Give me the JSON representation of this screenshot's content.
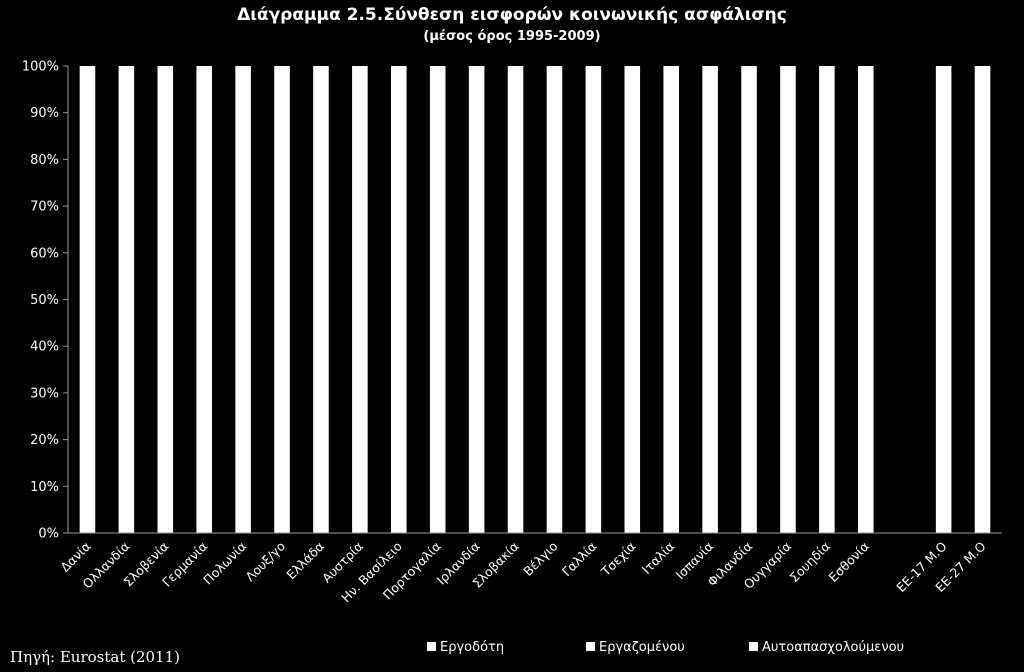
{
  "chart_data": {
    "type": "bar",
    "stacked": true,
    "title": "Διάγραμμα 2.5.Σύνθεση εισφορών κοινωνικής ασφάλισης",
    "subtitle": "(μέσος όρος 1995-2009)",
    "xlabel": "",
    "ylabel": "",
    "ylim": [
      0,
      1
    ],
    "grid": false,
    "legend_position": "bottom",
    "source": "Πηγή: Eurostat (2011)",
    "yticks": [
      "0%",
      "10%",
      "20%",
      "30%",
      "40%",
      "50%",
      "60%",
      "70%",
      "80%",
      "90%",
      "100%"
    ],
    "categories": [
      "Δανία",
      "Ολλανδία",
      "Σλοβενία",
      "Γερμανία",
      "Πολωνία",
      "Λουξ/γο",
      "Ελλάδα",
      "Αυστρία",
      "Ην. Βασίλειο",
      "Πορτογαλία",
      "Ιρλανδία",
      "Σλοβακία",
      "Βέλγιο",
      "Γαλλία",
      "Τσεχία",
      "Ιταλία",
      "Ισπανία",
      "Φιλανδία",
      "Ουγγαρία",
      "Σουηδία",
      "Εσθονία",
      "",
      "ΕΕ-17 Μ.Ο",
      "ΕΕ-27 Μ.Ο"
    ],
    "series": [
      {
        "name": "Εργοδότη",
        "color": "#ffffff",
        "values": [
          1,
          1,
          1,
          1,
          1,
          1,
          1,
          1,
          1,
          1,
          1,
          1,
          1,
          1,
          1,
          1,
          1,
          1,
          1,
          1,
          1,
          0,
          1,
          1
        ]
      },
      {
        "name": "Εργαζομένου",
        "color": "#ffffff",
        "values": [
          0,
          0,
          0,
          0,
          0,
          0,
          0,
          0,
          0,
          0,
          0,
          0,
          0,
          0,
          0,
          0,
          0,
          0,
          0,
          0,
          0,
          0,
          0,
          0
        ]
      },
      {
        "name": "Αυτοαπασχολούμενου",
        "color": "#ffffff",
        "values": [
          0,
          0,
          0,
          0,
          0,
          0,
          0,
          0,
          0,
          0,
          0,
          0,
          0,
          0,
          0,
          0,
          0,
          0,
          0,
          0,
          0,
          0,
          0,
          0
        ]
      }
    ]
  }
}
